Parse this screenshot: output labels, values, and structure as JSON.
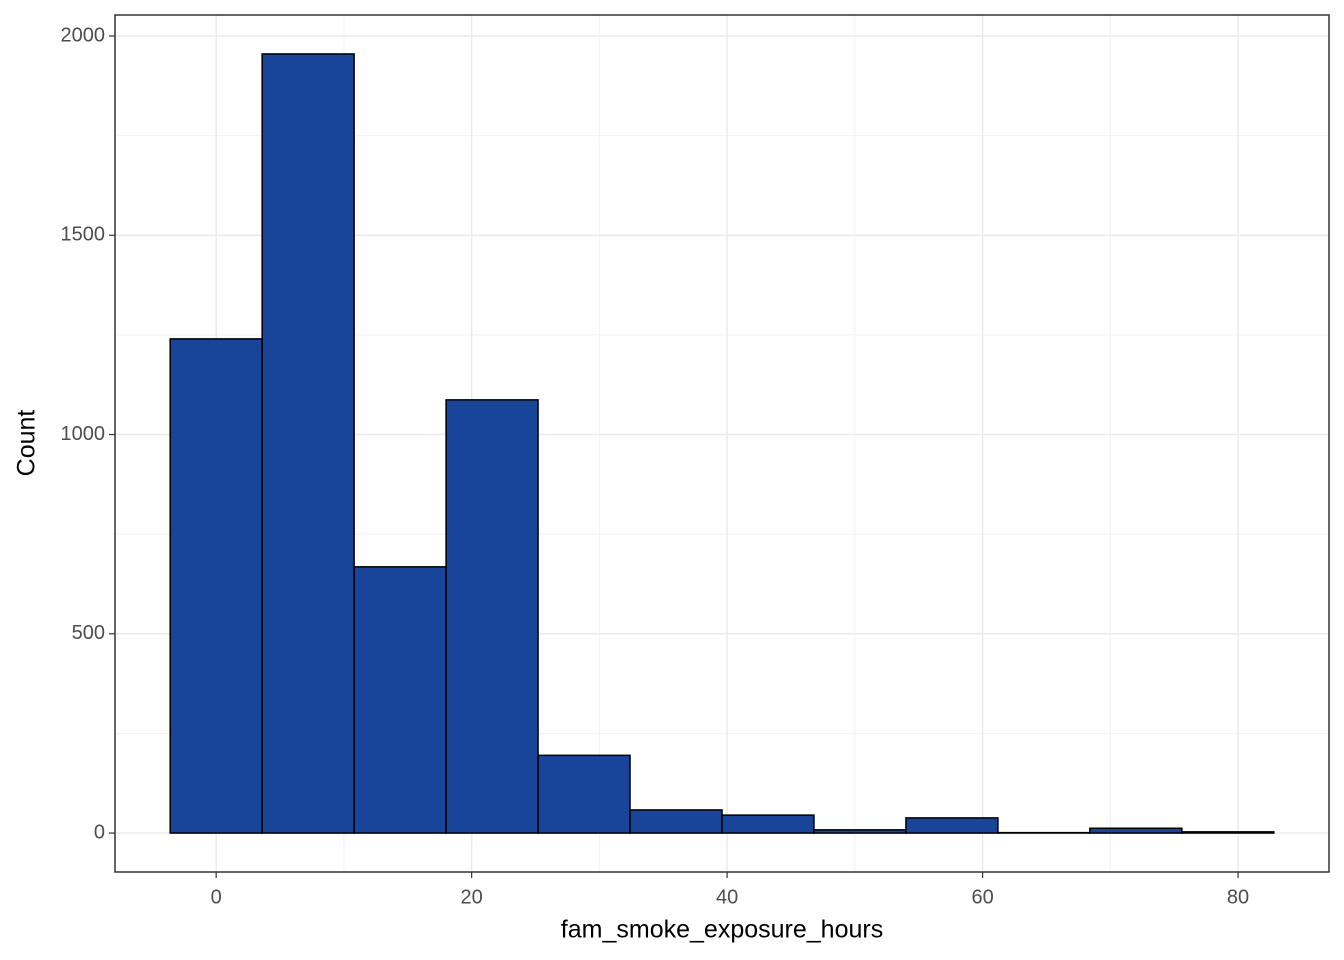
{
  "chart_data": {
    "type": "histogram",
    "xlabel": "fam_smoke_exposure_hours",
    "ylabel": "Count",
    "bins": [
      -3.6,
      3.6,
      10.8,
      18,
      25.2,
      32.4,
      39.6,
      46.8,
      54,
      61.2,
      68.4,
      75.6,
      82.8
    ],
    "values": [
      1240,
      1955,
      668,
      1087,
      195,
      58,
      45,
      8,
      38,
      1,
      12,
      3
    ],
    "color": "#18449a",
    "edgecolor": "#000000",
    "xlim": [
      -7.92,
      87.12
    ],
    "xticks": [
      0,
      20,
      40,
      60,
      80
    ],
    "xminorticks": [
      10,
      30,
      50,
      70
    ],
    "ylim": [
      -97.75,
      2052.75
    ],
    "yticks": [
      0,
      500,
      1000,
      1500,
      2000
    ],
    "yminorticks": [
      250,
      750,
      1250,
      1750
    ],
    "grid": true
  }
}
